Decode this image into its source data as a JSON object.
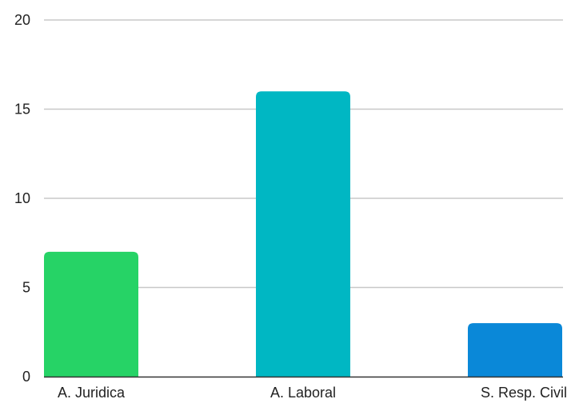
{
  "chart_data": {
    "type": "bar",
    "title": "",
    "xlabel": "",
    "ylabel": "",
    "categories": [
      "A. Juridica",
      "A. Laboral",
      "S. Resp. Civil"
    ],
    "values": [
      7,
      16,
      3
    ],
    "colors": [
      "#26d366",
      "#00b7c3",
      "#0a88d8"
    ],
    "ylim": [
      0,
      20
    ],
    "yticks": [
      0,
      5,
      10,
      15,
      20
    ],
    "grid": true,
    "legend": "none",
    "gridline_color": "#c8c8c8",
    "axis_color": "#333333"
  }
}
